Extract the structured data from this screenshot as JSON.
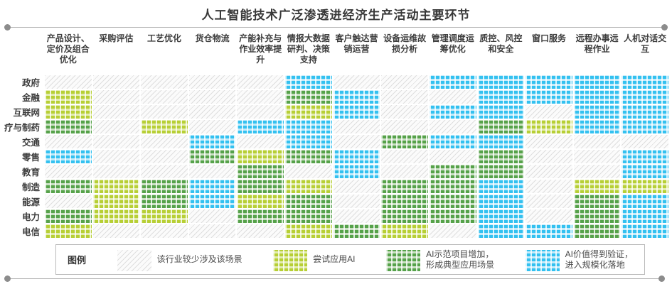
{
  "title": "人工智能技术广泛渗透进经济生产活动主要环节",
  "legend": {
    "title": "图例",
    "items": [
      {
        "level": 0,
        "label": "该行业较少涉及该场景"
      },
      {
        "level": 1,
        "label": "尝试应用AI"
      },
      {
        "level": 2,
        "label": "AI示范项目增加，\n形成典型应用场景"
      },
      {
        "level": 3,
        "label": "AI价值得到验证，\n进入规模化落地"
      }
    ]
  },
  "colors": {
    "level0_hatch": "#dedede",
    "level1_main": "#b7cf35",
    "level1_tint": "#e3ecb0",
    "level2_main": "#56a24a",
    "level2_tint": "#cbe0c4",
    "level3_main": "#33c1f0",
    "level3_tint": "#c5ebfa",
    "rule_line": "#b3b3b3",
    "rule_dot": "#8c8c8c",
    "text": "#3d3d3d"
  },
  "chart_data": {
    "type": "heatmap",
    "title": "人工智能技术广泛渗透进经济生产活动主要环节",
    "x_categories": [
      "产品设计、定价及组合优化",
      "采购评估",
      "工艺优化",
      "货仓物流",
      "产能补充与作业效率提升",
      "情报大数据研判、决策支持",
      "客户触达营销运营",
      "设备运维故损分析",
      "管理调度运筹优化",
      "质控、风控和安全",
      "窗口服务",
      "远程办事远程作业",
      "人机对话交互"
    ],
    "y_categories": [
      "政府",
      "金融",
      "互联网",
      "疗与制药",
      "交通",
      "零售",
      "教育",
      "制造",
      "能源",
      "电力",
      "电信"
    ],
    "level_meanings": {
      "0": "该行业较少涉及该场景",
      "1": "尝试应用AI",
      "2": "AI示范项目增加，形成典型应用场景",
      "3": "AI价值得到验证，进入规模化落地"
    },
    "matrix": [
      [
        0,
        0,
        0,
        0,
        0,
        3,
        0,
        0,
        3,
        3,
        3,
        3,
        3
      ],
      [
        1,
        0,
        0,
        0,
        0,
        2,
        3,
        0,
        0,
        3,
        3,
        3,
        3
      ],
      [
        1,
        0,
        0,
        0,
        0,
        1,
        3,
        0,
        3,
        3,
        0,
        3,
        3
      ],
      [
        2,
        0,
        1,
        0,
        3,
        3,
        0,
        0,
        0,
        2,
        1,
        3,
        3
      ],
      [
        0,
        0,
        0,
        3,
        0,
        3,
        0,
        2,
        3,
        3,
        0,
        0,
        0
      ],
      [
        3,
        0,
        0,
        2,
        1,
        2,
        3,
        0,
        0,
        2,
        0,
        0,
        3
      ],
      [
        0,
        0,
        0,
        0,
        2,
        0,
        3,
        0,
        2,
        2,
        0,
        0,
        3
      ],
      [
        2,
        1,
        2,
        3,
        2,
        1,
        0,
        2,
        2,
        3,
        0,
        1,
        1
      ],
      [
        0,
        1,
        2,
        3,
        1,
        2,
        0,
        2,
        2,
        3,
        0,
        2,
        3
      ],
      [
        2,
        1,
        1,
        0,
        2,
        2,
        0,
        2,
        2,
        3,
        0,
        2,
        3
      ],
      [
        1,
        0,
        0,
        0,
        0,
        1,
        2,
        1,
        0,
        3,
        3,
        2,
        3
      ]
    ]
  }
}
